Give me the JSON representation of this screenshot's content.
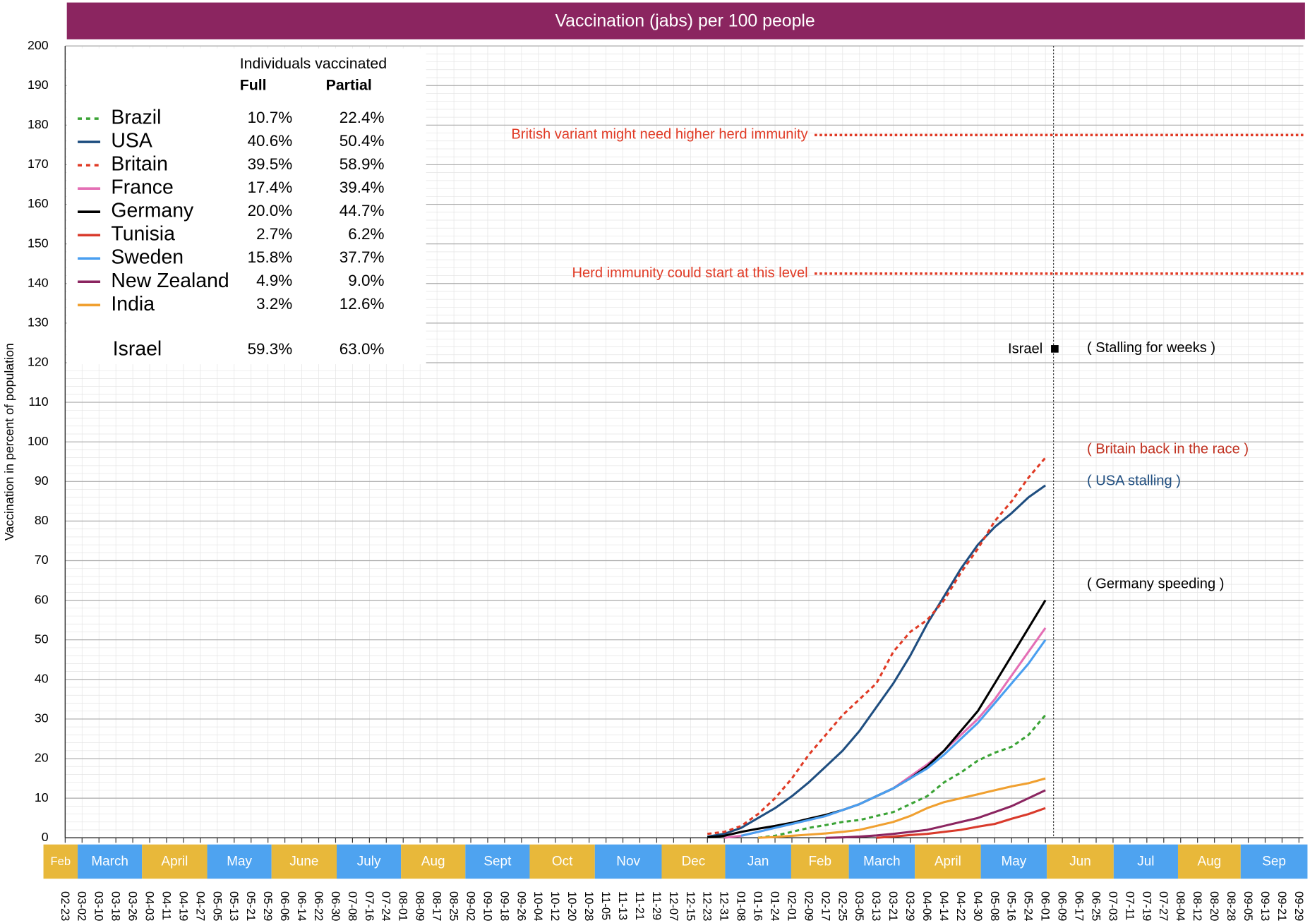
{
  "chart_data": {
    "type": "line",
    "title": "Vaccination (jabs) per 100 people",
    "y_label": "Vaccination in percent of population",
    "ylim": [
      0,
      200
    ],
    "yticks": [
      0,
      10,
      20,
      30,
      40,
      50,
      60,
      70,
      80,
      90,
      100,
      110,
      120,
      130,
      140,
      150,
      160,
      170,
      180,
      190,
      200
    ],
    "grid": true,
    "categories": [
      "02-23",
      "03-02",
      "03-10",
      "03-18",
      "03-26",
      "04-03",
      "04-11",
      "04-19",
      "04-27",
      "05-05",
      "05-13",
      "05-21",
      "05-29",
      "06-06",
      "06-14",
      "06-22",
      "06-30",
      "07-08",
      "07-16",
      "07-24",
      "08-01",
      "08-09",
      "08-17",
      "08-25",
      "09-02",
      "09-10",
      "09-18",
      "09-26",
      "10-04",
      "10-12",
      "10-20",
      "10-28",
      "11-05",
      "11-13",
      "11-21",
      "11-29",
      "12-07",
      "12-15",
      "12-23",
      "12-31",
      "01-08",
      "01-16",
      "01-24",
      "02-01",
      "02-09",
      "02-17",
      "02-25",
      "03-05",
      "03-13",
      "03-21",
      "03-29",
      "04-06",
      "04-14",
      "04-22",
      "04-30",
      "05-08",
      "05-16",
      "05-24",
      "06-01",
      "06-09",
      "06-17",
      "06-25",
      "07-03",
      "07-11",
      "07-19",
      "07-27",
      "08-04",
      "08-12",
      "08-20",
      "08-28",
      "09-05",
      "09-13",
      "09-21",
      "09-29"
    ],
    "months": [
      {
        "label": "Feb",
        "color": "#e8b83a"
      },
      {
        "label": "March",
        "color": "#4ea3f0"
      },
      {
        "label": "April",
        "color": "#e8b83a"
      },
      {
        "label": "May",
        "color": "#4ea3f0"
      },
      {
        "label": "June",
        "color": "#e8b83a"
      },
      {
        "label": "July",
        "color": "#4ea3f0"
      },
      {
        "label": "Aug",
        "color": "#e8b83a"
      },
      {
        "label": "Sept",
        "color": "#4ea3f0"
      },
      {
        "label": "Oct",
        "color": "#e8b83a"
      },
      {
        "label": "Nov",
        "color": "#4ea3f0"
      },
      {
        "label": "Dec",
        "color": "#e8b83a"
      },
      {
        "label": "Jan",
        "color": "#4ea3f0"
      },
      {
        "label": "Feb",
        "color": "#e8b83a"
      },
      {
        "label": "March",
        "color": "#4ea3f0"
      },
      {
        "label": "April",
        "color": "#e8b83a"
      },
      {
        "label": "May",
        "color": "#4ea3f0"
      },
      {
        "label": "Jun",
        "color": "#e8b83a"
      },
      {
        "label": "Jul",
        "color": "#4ea3f0"
      },
      {
        "label": "Aug",
        "color": "#e8b83a"
      },
      {
        "label": "Sep",
        "color": "#4ea3f0"
      }
    ],
    "legend": {
      "header": "Individuals vaccinated",
      "col_full": "Full",
      "col_partial": "Partial"
    },
    "series": [
      {
        "name": "Brazil",
        "color": "#3aa335",
        "dashed": true,
        "full": "10.7%",
        "partial": "22.4%",
        "values": [
          null,
          null,
          null,
          null,
          null,
          null,
          null,
          null,
          null,
          null,
          null,
          null,
          null,
          null,
          null,
          null,
          null,
          null,
          null,
          null,
          null,
          null,
          null,
          null,
          null,
          null,
          null,
          null,
          null,
          null,
          null,
          null,
          null,
          null,
          null,
          null,
          null,
          null,
          null,
          null,
          null,
          0,
          0.5,
          1.5,
          2.5,
          3.2,
          4,
          4.5,
          5.5,
          6.5,
          8.5,
          10.5,
          14,
          16.5,
          19.5,
          21.5,
          23,
          26,
          31,
          null,
          null,
          null,
          null,
          null,
          null,
          null,
          null,
          null,
          null,
          null,
          null,
          null,
          null,
          null
        ]
      },
      {
        "name": "USA",
        "color": "#1f4e80",
        "dashed": false,
        "full": "40.6%",
        "partial": "50.4%",
        "values": [
          null,
          null,
          null,
          null,
          null,
          null,
          null,
          null,
          null,
          null,
          null,
          null,
          null,
          null,
          null,
          null,
          null,
          null,
          null,
          null,
          null,
          null,
          null,
          null,
          null,
          null,
          null,
          null,
          null,
          null,
          null,
          null,
          null,
          null,
          null,
          null,
          null,
          null,
          0.3,
          1,
          2.5,
          5,
          7.5,
          10.5,
          14,
          18,
          22,
          27,
          33,
          39,
          46,
          54,
          61,
          68,
          74,
          78.5,
          82,
          86,
          89,
          null,
          null,
          null,
          null,
          null,
          null,
          null,
          null,
          null,
          null,
          null,
          null,
          null,
          null,
          null
        ]
      },
      {
        "name": "Britain",
        "color": "#e03a25",
        "dashed": true,
        "full": "39.5%",
        "partial": "58.9%",
        "values": [
          null,
          null,
          null,
          null,
          null,
          null,
          null,
          null,
          null,
          null,
          null,
          null,
          null,
          null,
          null,
          null,
          null,
          null,
          null,
          null,
          null,
          null,
          null,
          null,
          null,
          null,
          null,
          null,
          null,
          null,
          null,
          null,
          null,
          null,
          null,
          null,
          null,
          null,
          1,
          1.5,
          3,
          6,
          10,
          15,
          21,
          26,
          31,
          35,
          39,
          47,
          52,
          55,
          60,
          67,
          73,
          80,
          85,
          91,
          96,
          null,
          null,
          null,
          null,
          null,
          null,
          null,
          null,
          null,
          null,
          null,
          null,
          null,
          null,
          null
        ]
      },
      {
        "name": "France",
        "color": "#e46fb5",
        "dashed": false,
        "full": "17.4%",
        "partial": "39.4%",
        "values": [
          null,
          null,
          null,
          null,
          null,
          null,
          null,
          null,
          null,
          null,
          null,
          null,
          null,
          null,
          null,
          null,
          null,
          null,
          null,
          null,
          null,
          null,
          null,
          null,
          null,
          null,
          null,
          null,
          null,
          null,
          null,
          null,
          null,
          null,
          null,
          null,
          null,
          null,
          null,
          0,
          0.5,
          1.5,
          2.5,
          3.5,
          4.5,
          5.5,
          7,
          8.5,
          10.5,
          12.5,
          15.5,
          18.5,
          22,
          26,
          30,
          35,
          41,
          47,
          53,
          null,
          null,
          null,
          null,
          null,
          null,
          null,
          null,
          null,
          null,
          null,
          null,
          null,
          null,
          null
        ]
      },
      {
        "name": "Germany",
        "color": "#000000",
        "dashed": false,
        "full": "20.0%",
        "partial": "44.7%",
        "values": [
          null,
          null,
          null,
          null,
          null,
          null,
          null,
          null,
          null,
          null,
          null,
          null,
          null,
          null,
          null,
          null,
          null,
          null,
          null,
          null,
          null,
          null,
          null,
          null,
          null,
          null,
          null,
          null,
          null,
          null,
          null,
          null,
          null,
          null,
          null,
          null,
          null,
          null,
          0.1,
          0.5,
          1.5,
          2.3,
          3,
          3.8,
          4.8,
          5.8,
          7,
          8.5,
          10.5,
          12.5,
          15,
          18,
          22,
          27,
          32,
          39,
          46,
          53,
          60,
          null,
          null,
          null,
          null,
          null,
          null,
          null,
          null,
          null,
          null,
          null,
          null,
          null,
          null,
          null
        ]
      },
      {
        "name": "Tunisia",
        "color": "#d93a2b",
        "dashed": false,
        "full": "2.7%",
        "partial": "6.2%",
        "values": [
          null,
          null,
          null,
          null,
          null,
          null,
          null,
          null,
          null,
          null,
          null,
          null,
          null,
          null,
          null,
          null,
          null,
          null,
          null,
          null,
          null,
          null,
          null,
          null,
          null,
          null,
          null,
          null,
          null,
          null,
          null,
          null,
          null,
          null,
          null,
          null,
          null,
          null,
          null,
          null,
          null,
          null,
          null,
          null,
          null,
          null,
          null,
          null,
          0,
          0.3,
          0.7,
          1,
          1.5,
          2,
          2.8,
          3.5,
          4.8,
          6,
          7.5,
          null,
          null,
          null,
          null,
          null,
          null,
          null,
          null,
          null,
          null,
          null,
          null,
          null,
          null,
          null
        ]
      },
      {
        "name": "Sweden",
        "color": "#4a9ff0",
        "dashed": false,
        "full": "15.8%",
        "partial": "37.7%",
        "values": [
          null,
          null,
          null,
          null,
          null,
          null,
          null,
          null,
          null,
          null,
          null,
          null,
          null,
          null,
          null,
          null,
          null,
          null,
          null,
          null,
          null,
          null,
          null,
          null,
          null,
          null,
          null,
          null,
          null,
          null,
          null,
          null,
          null,
          null,
          null,
          null,
          null,
          null,
          null,
          null,
          0.5,
          1.5,
          2.5,
          3.5,
          4.5,
          5.5,
          7,
          8.5,
          10.5,
          12.5,
          15,
          17.5,
          21,
          25,
          29,
          34,
          39,
          44,
          50,
          null,
          null,
          null,
          null,
          null,
          null,
          null,
          null,
          null,
          null,
          null,
          null,
          null,
          null,
          null
        ]
      },
      {
        "name": "New Zealand",
        "color": "#8b2560",
        "dashed": false,
        "full": "4.9%",
        "partial": "9.0%",
        "values": [
          null,
          null,
          null,
          null,
          null,
          null,
          null,
          null,
          null,
          null,
          null,
          null,
          null,
          null,
          null,
          null,
          null,
          null,
          null,
          null,
          null,
          null,
          null,
          null,
          null,
          null,
          null,
          null,
          null,
          null,
          null,
          null,
          null,
          null,
          null,
          null,
          null,
          null,
          null,
          null,
          null,
          null,
          null,
          null,
          null,
          0,
          0.1,
          0.3,
          0.6,
          1,
          1.5,
          2,
          3,
          4,
          5,
          6.5,
          8,
          10,
          12,
          null,
          null,
          null,
          null,
          null,
          null,
          null,
          null,
          null,
          null,
          null,
          null,
          null,
          null,
          null
        ]
      },
      {
        "name": "India",
        "color": "#f0a030",
        "dashed": false,
        "full": "3.2%",
        "partial": "12.6%",
        "values": [
          null,
          null,
          null,
          null,
          null,
          null,
          null,
          null,
          null,
          null,
          null,
          null,
          null,
          null,
          null,
          null,
          null,
          null,
          null,
          null,
          null,
          null,
          null,
          null,
          null,
          null,
          null,
          null,
          null,
          null,
          null,
          null,
          null,
          null,
          null,
          null,
          null,
          null,
          null,
          null,
          null,
          0,
          0.2,
          0.5,
          0.8,
          1.1,
          1.5,
          2,
          3,
          4,
          5.5,
          7.5,
          9,
          10,
          11,
          12,
          13,
          13.8,
          15,
          null,
          null,
          null,
          null,
          null,
          null,
          null,
          null,
          null,
          null,
          null,
          null,
          null,
          null,
          null
        ]
      }
    ],
    "israel": {
      "name": "Israel",
      "full": "59.3%",
      "partial": "63.0%",
      "value": 123.6,
      "note": "( Stalling for weeks )"
    },
    "reference_lines": [
      {
        "value": 177.5,
        "label": "British variant might need higher herd immunity",
        "color": "#e03a25"
      },
      {
        "value": 142.5,
        "label": "Herd immunity could start at this level",
        "color": "#e03a25"
      }
    ],
    "annotations": [
      {
        "value": 98,
        "label": "( Britain back in the race )",
        "color": "#c0301f"
      },
      {
        "value": 90,
        "label": "( USA stalling )",
        "color": "#1f4e80"
      },
      {
        "value": 64,
        "label": "( Germany speeding )",
        "color": "#000000"
      }
    ]
  }
}
